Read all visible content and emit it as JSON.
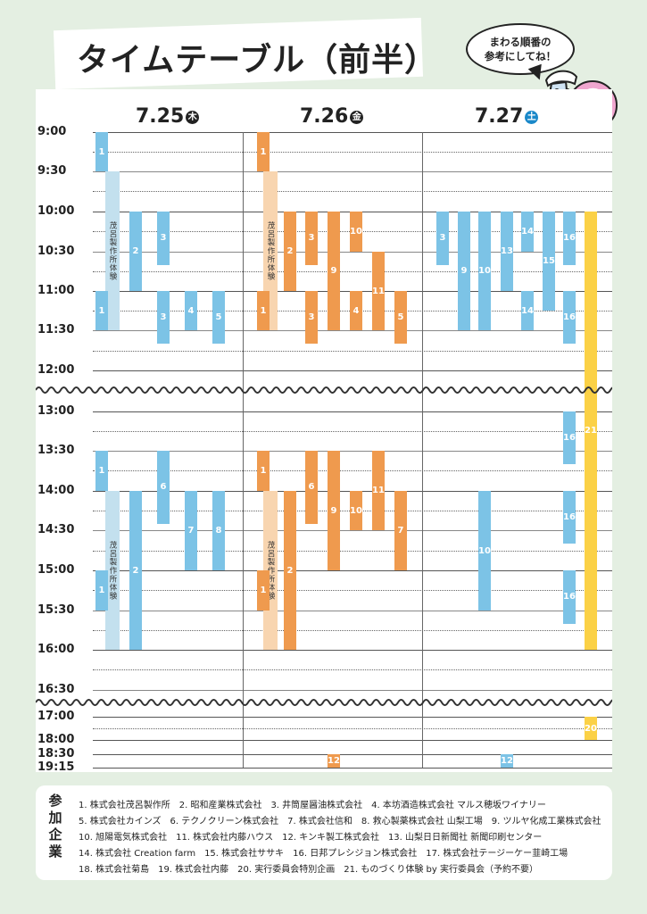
{
  "title": "タイムテーブル（前半）",
  "bubble": [
    "まわる順番の",
    "参考にしてね！"
  ],
  "days": [
    {
      "date": "7.25",
      "dow": "木",
      "color": "#222"
    },
    {
      "date": "7.26",
      "dow": "金",
      "color": "#222"
    },
    {
      "date": "7.27",
      "dow": "土",
      "color": "#1a88c9"
    }
  ],
  "times": [
    "9:00",
    "9:30",
    "10:00",
    "10:30",
    "11:00",
    "11:30",
    "12:00",
    "13:00",
    "13:30",
    "14:00",
    "14:30",
    "15:00",
    "15:30",
    "16:00",
    "16:30",
    "17:00",
    "18:00",
    "18:30",
    "19:15"
  ],
  "colors": {
    "blue": "#7cc3e6",
    "light_blue": "#c3e0ee",
    "orange": "#ef9a4e",
    "light_orange": "#f8d5b0",
    "yellow": "#fbd146"
  },
  "bars": [
    {
      "label": "1",
      "c": "blue",
      "day": 0,
      "col": 0,
      "s": "9:00",
      "e": "9:30"
    },
    {
      "label": "茂呂製作所体験",
      "c": "light_blue",
      "day": 0,
      "col": 1,
      "s": "9:30",
      "e": "11:30",
      "v": true
    },
    {
      "label": "2",
      "c": "blue",
      "day": 0,
      "col": 2,
      "s": "10:00",
      "e": "11:00"
    },
    {
      "label": "3",
      "c": "blue",
      "day": 0,
      "col": 3,
      "s": "10:00",
      "e": "10:40"
    },
    {
      "label": "1",
      "c": "blue",
      "day": 0,
      "col": 0,
      "s": "11:00",
      "e": "11:30"
    },
    {
      "label": "3",
      "c": "blue",
      "day": 0,
      "col": 3,
      "s": "11:00",
      "e": "11:40"
    },
    {
      "label": "4",
      "c": "blue",
      "day": 0,
      "col": 4,
      "s": "11:00",
      "e": "11:30"
    },
    {
      "label": "5",
      "c": "blue",
      "day": 0,
      "col": 5,
      "s": "11:00",
      "e": "11:40"
    },
    {
      "label": "1",
      "c": "blue",
      "day": 0,
      "col": 0,
      "s": "13:30",
      "e": "14:00"
    },
    {
      "label": "茂呂製作所体験",
      "c": "light_blue",
      "day": 0,
      "col": 1,
      "s": "14:00",
      "e": "16:00",
      "v": true
    },
    {
      "label": "6",
      "c": "blue",
      "day": 0,
      "col": 3,
      "s": "13:30",
      "e": "14:25"
    },
    {
      "label": "2",
      "c": "blue",
      "day": 0,
      "col": 2,
      "s": "14:00",
      "e": "16:00"
    },
    {
      "label": "7",
      "c": "blue",
      "day": 0,
      "col": 4,
      "s": "14:00",
      "e": "15:00"
    },
    {
      "label": "8",
      "c": "blue",
      "day": 0,
      "col": 5,
      "s": "14:00",
      "e": "15:00"
    },
    {
      "label": "1",
      "c": "blue",
      "day": 0,
      "col": 0,
      "s": "15:00",
      "e": "15:30"
    },
    {
      "label": "1",
      "c": "orange",
      "day": 1,
      "col": 0,
      "s": "9:00",
      "e": "9:30"
    },
    {
      "label": "茂呂製作所体験",
      "c": "light_orange",
      "day": 1,
      "col": 1,
      "s": "9:30",
      "e": "11:30",
      "v": true
    },
    {
      "label": "2",
      "c": "orange",
      "day": 1,
      "col": 2,
      "s": "10:00",
      "e": "11:00"
    },
    {
      "label": "3",
      "c": "orange",
      "day": 1,
      "col": 3,
      "s": "10:00",
      "e": "10:40"
    },
    {
      "label": "9",
      "c": "orange",
      "day": 1,
      "col": 4,
      "s": "10:00",
      "e": "11:30"
    },
    {
      "label": "10",
      "c": "orange",
      "day": 1,
      "col": 5,
      "s": "10:00",
      "e": "10:30"
    },
    {
      "label": "11",
      "c": "orange",
      "day": 1,
      "col": 6,
      "s": "10:30",
      "e": "11:30"
    },
    {
      "label": "1",
      "c": "orange",
      "day": 1,
      "col": 0,
      "s": "11:00",
      "e": "11:30"
    },
    {
      "label": "3",
      "c": "orange",
      "day": 1,
      "col": 3,
      "s": "11:00",
      "e": "11:40"
    },
    {
      "label": "4",
      "c": "orange",
      "day": 1,
      "col": 5,
      "s": "11:00",
      "e": "11:30"
    },
    {
      "label": "5",
      "c": "orange",
      "day": 1,
      "col": 7,
      "s": "11:00",
      "e": "11:40"
    },
    {
      "label": "1",
      "c": "orange",
      "day": 1,
      "col": 0,
      "s": "13:30",
      "e": "14:00"
    },
    {
      "label": "茂呂製作所体験",
      "c": "light_orange",
      "day": 1,
      "col": 1,
      "s": "14:00",
      "e": "16:00",
      "v": true
    },
    {
      "label": "2",
      "c": "orange",
      "day": 1,
      "col": 2,
      "s": "14:00",
      "e": "16:00"
    },
    {
      "label": "6",
      "c": "orange",
      "day": 1,
      "col": 3,
      "s": "13:30",
      "e": "14:25"
    },
    {
      "label": "9",
      "c": "orange",
      "day": 1,
      "col": 4,
      "s": "13:30",
      "e": "15:00"
    },
    {
      "label": "10",
      "c": "orange",
      "day": 1,
      "col": 5,
      "s": "14:00",
      "e": "14:30"
    },
    {
      "label": "11",
      "c": "orange",
      "day": 1,
      "col": 6,
      "s": "13:30",
      "e": "14:30"
    },
    {
      "label": "7",
      "c": "orange",
      "day": 1,
      "col": 7,
      "s": "14:00",
      "e": "15:00"
    },
    {
      "label": "1",
      "c": "orange",
      "day": 1,
      "col": 0,
      "s": "15:00",
      "e": "15:30"
    },
    {
      "label": "12",
      "c": "orange",
      "day": 1,
      "col": 4,
      "s": "18:30",
      "e": "19:15"
    },
    {
      "label": "3",
      "c": "blue",
      "day": 2,
      "col": 0,
      "s": "10:00",
      "e": "10:40"
    },
    {
      "label": "9",
      "c": "blue",
      "day": 2,
      "col": 1,
      "s": "10:00",
      "e": "11:30"
    },
    {
      "label": "10",
      "c": "blue",
      "day": 2,
      "col": 2,
      "s": "10:00",
      "e": "11:30"
    },
    {
      "label": "13",
      "c": "blue",
      "day": 2,
      "col": 3,
      "s": "10:00",
      "e": "11:00"
    },
    {
      "label": "14",
      "c": "blue",
      "day": 2,
      "col": 4,
      "s": "10:00",
      "e": "10:30"
    },
    {
      "label": "15",
      "c": "blue",
      "day": 2,
      "col": 5,
      "s": "10:00",
      "e": "11:15"
    },
    {
      "label": "16",
      "c": "blue",
      "day": 2,
      "col": 6,
      "s": "10:00",
      "e": "10:40"
    },
    {
      "label": "14",
      "c": "blue",
      "day": 2,
      "col": 4,
      "s": "11:00",
      "e": "11:30"
    },
    {
      "label": "16",
      "c": "blue",
      "day": 2,
      "col": 6,
      "s": "11:00",
      "e": "11:40"
    },
    {
      "label": "21",
      "c": "yellow",
      "day": 2,
      "col": 7,
      "s": "10:00",
      "e": "16:00"
    },
    {
      "label": "16",
      "c": "blue",
      "day": 2,
      "col": 6,
      "s": "13:00",
      "e": "13:40"
    },
    {
      "label": "10",
      "c": "blue",
      "day": 2,
      "col": 2,
      "s": "14:00",
      "e": "15:30"
    },
    {
      "label": "16",
      "c": "blue",
      "day": 2,
      "col": 6,
      "s": "14:00",
      "e": "14:40"
    },
    {
      "label": "16",
      "c": "blue",
      "day": 2,
      "col": 6,
      "s": "15:00",
      "e": "15:40"
    },
    {
      "label": "20",
      "c": "yellow",
      "day": 2,
      "col": 7,
      "s": "17:00",
      "e": "18:00"
    },
    {
      "label": "12",
      "c": "blue",
      "day": 2,
      "col": 3,
      "s": "18:30",
      "e": "19:15"
    }
  ],
  "legend": {
    "heading": "参加企業",
    "rows": [
      "1. 株式会社茂呂製作所　2. 昭和産業株式会社　3. 井筒屋醤油株式会社　4. 本坊酒造株式会社 マルス穂坂ワイナリー",
      "5. 株式会社カインズ　6. テクノクリーン株式会社　7. 株式会社信和　8. 救心製薬株式会社 山梨工場　9. ツルヤ化成工業株式会社",
      "10. 旭陽電気株式会社　11. 株式会社内藤ハウス　12. キンキ製工株式会社　13. 山梨日日新聞社 新聞印刷センター",
      "14. 株式会社 Creation farm　15. 株式会社ササキ　16. 日邦プレシジョン株式会社　17. 株式会社テージーケー韮崎工場",
      "18. 株式会社菊島　19. 株式会社内藤　20. 実行委員会特別企画　21. ものづくり体験 by 実行委員会（予約不要）"
    ]
  }
}
